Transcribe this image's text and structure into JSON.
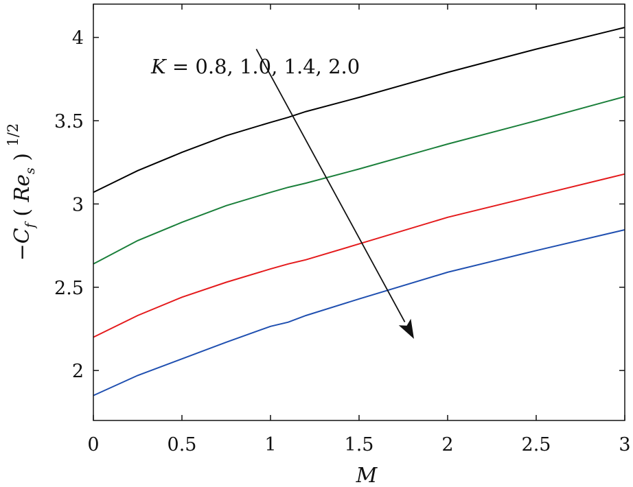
{
  "chart_data": {
    "type": "line",
    "title": "",
    "xlabel": "M",
    "ylabel": {
      "minus": "−",
      "C": "C",
      "f": "f",
      "open": "(",
      "Re": "Re",
      "s": "s",
      "close": ")",
      "exponent": "1/2"
    },
    "xlim": [
      0,
      3
    ],
    "ylim": [
      1.7,
      4.2
    ],
    "xticks": [
      0,
      0.5,
      1,
      1.5,
      2,
      2.5,
      3
    ],
    "xtick_labels": [
      "0",
      "0.5",
      "1",
      "1.5",
      "2",
      "2.5",
      "3"
    ],
    "yticks": [
      2,
      2.5,
      3,
      3.5,
      4
    ],
    "ytick_labels": [
      "2",
      "2.5",
      "3",
      "3.5",
      "4"
    ],
    "grid": false,
    "annotation": {
      "var": "K",
      "eq": " = ",
      "values": "0.8, 1.0, 1.4, 2.0",
      "arrow_from": [
        0.92,
        3.93
      ],
      "arrow_to": [
        1.81,
        2.19
      ]
    },
    "x": [
      0,
      0.25,
      0.5,
      0.75,
      1.0,
      1.1,
      1.2,
      1.5,
      2.0,
      2.5,
      3.0
    ],
    "series": [
      {
        "color": "#000000",
        "values": [
          3.07,
          3.2,
          3.31,
          3.41,
          3.49,
          3.52,
          3.555,
          3.64,
          3.79,
          3.93,
          4.06
        ]
      },
      {
        "color": "#1a7f3a",
        "values": [
          2.64,
          2.78,
          2.89,
          2.99,
          3.07,
          3.1,
          3.125,
          3.21,
          3.36,
          3.5,
          3.645
        ]
      },
      {
        "color": "#e41a1c",
        "values": [
          2.2,
          2.33,
          2.44,
          2.53,
          2.61,
          2.64,
          2.665,
          2.76,
          2.92,
          3.05,
          3.18
        ]
      },
      {
        "color": "#1f4fb0",
        "values": [
          1.85,
          1.97,
          2.07,
          2.17,
          2.265,
          2.29,
          2.33,
          2.43,
          2.59,
          2.72,
          2.845
        ]
      }
    ]
  }
}
